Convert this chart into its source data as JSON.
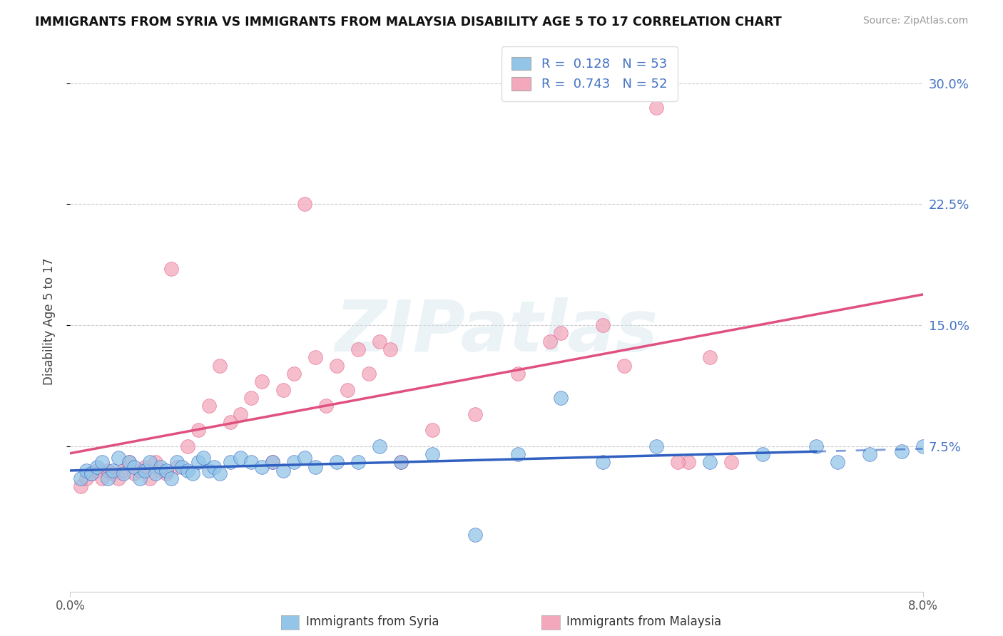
{
  "title": "IMMIGRANTS FROM SYRIA VS IMMIGRANTS FROM MALAYSIA DISABILITY AGE 5 TO 17 CORRELATION CHART",
  "source": "Source: ZipAtlas.com",
  "ylabel": "Disability Age 5 to 17",
  "xlim": [
    0.0,
    8.0
  ],
  "ylim": [
    -1.5,
    32.0
  ],
  "yticks": [
    7.5,
    15.0,
    22.5,
    30.0
  ],
  "ytick_labels": [
    "7.5%",
    "15.0%",
    "22.5%",
    "30.0%"
  ],
  "syria_color": "#92c5e8",
  "malaysia_color": "#f4a8bc",
  "syria_line_color": "#3060c0",
  "malaysia_line_color": "#e05080",
  "syria_R": 0.128,
  "syria_N": 53,
  "malaysia_R": 0.743,
  "malaysia_N": 52,
  "legend_color": "#4472c4",
  "axis_tick_color": "#4472c4",
  "watermark": "ZIPatlas",
  "syria_scatter_x": [
    0.1,
    0.15,
    0.2,
    0.25,
    0.3,
    0.35,
    0.4,
    0.45,
    0.5,
    0.55,
    0.6,
    0.65,
    0.7,
    0.75,
    0.8,
    0.85,
    0.9,
    0.95,
    1.0,
    1.05,
    1.1,
    1.15,
    1.2,
    1.25,
    1.3,
    1.35,
    1.4,
    1.5,
    1.6,
    1.7,
    1.8,
    1.9,
    2.0,
    2.1,
    2.2,
    2.3,
    2.5,
    2.7,
    2.9,
    3.1,
    3.4,
    3.8,
    4.2,
    4.6,
    5.0,
    5.5,
    6.0,
    6.5,
    7.0,
    7.2,
    7.5,
    7.8,
    8.0
  ],
  "syria_scatter_y": [
    5.5,
    6.0,
    5.8,
    6.2,
    6.5,
    5.5,
    6.0,
    6.8,
    5.8,
    6.5,
    6.2,
    5.5,
    6.0,
    6.5,
    5.8,
    6.2,
    6.0,
    5.5,
    6.5,
    6.2,
    6.0,
    5.8,
    6.5,
    6.8,
    6.0,
    6.2,
    5.8,
    6.5,
    6.8,
    6.5,
    6.2,
    6.5,
    6.0,
    6.5,
    6.8,
    6.2,
    6.5,
    6.5,
    7.5,
    6.5,
    7.0,
    2.0,
    7.0,
    10.5,
    6.5,
    7.5,
    6.5,
    7.0,
    7.5,
    6.5,
    7.0,
    7.2,
    7.5
  ],
  "malaysia_scatter_x": [
    0.1,
    0.15,
    0.2,
    0.25,
    0.3,
    0.35,
    0.4,
    0.45,
    0.5,
    0.55,
    0.6,
    0.65,
    0.7,
    0.75,
    0.8,
    0.85,
    0.9,
    0.95,
    1.0,
    1.1,
    1.2,
    1.3,
    1.4,
    1.5,
    1.6,
    1.7,
    1.8,
    1.9,
    2.0,
    2.1,
    2.2,
    2.3,
    2.5,
    2.7,
    2.9,
    3.1,
    3.4,
    3.8,
    4.2,
    4.6,
    5.0,
    5.5,
    6.2,
    4.5,
    5.8,
    5.2,
    6.0,
    5.7,
    2.4,
    2.6,
    2.8,
    3.0
  ],
  "malaysia_scatter_y": [
    5.0,
    5.5,
    5.8,
    6.0,
    5.5,
    6.0,
    5.8,
    5.5,
    6.0,
    6.5,
    5.8,
    6.0,
    6.2,
    5.5,
    6.5,
    6.0,
    5.8,
    18.5,
    6.2,
    7.5,
    8.5,
    10.0,
    12.5,
    9.0,
    9.5,
    10.5,
    11.5,
    6.5,
    11.0,
    12.0,
    22.5,
    13.0,
    12.5,
    13.5,
    14.0,
    6.5,
    8.5,
    9.5,
    12.0,
    14.5,
    15.0,
    28.5,
    6.5,
    14.0,
    6.5,
    12.5,
    13.0,
    6.5,
    10.0,
    11.0,
    12.0,
    13.5
  ]
}
